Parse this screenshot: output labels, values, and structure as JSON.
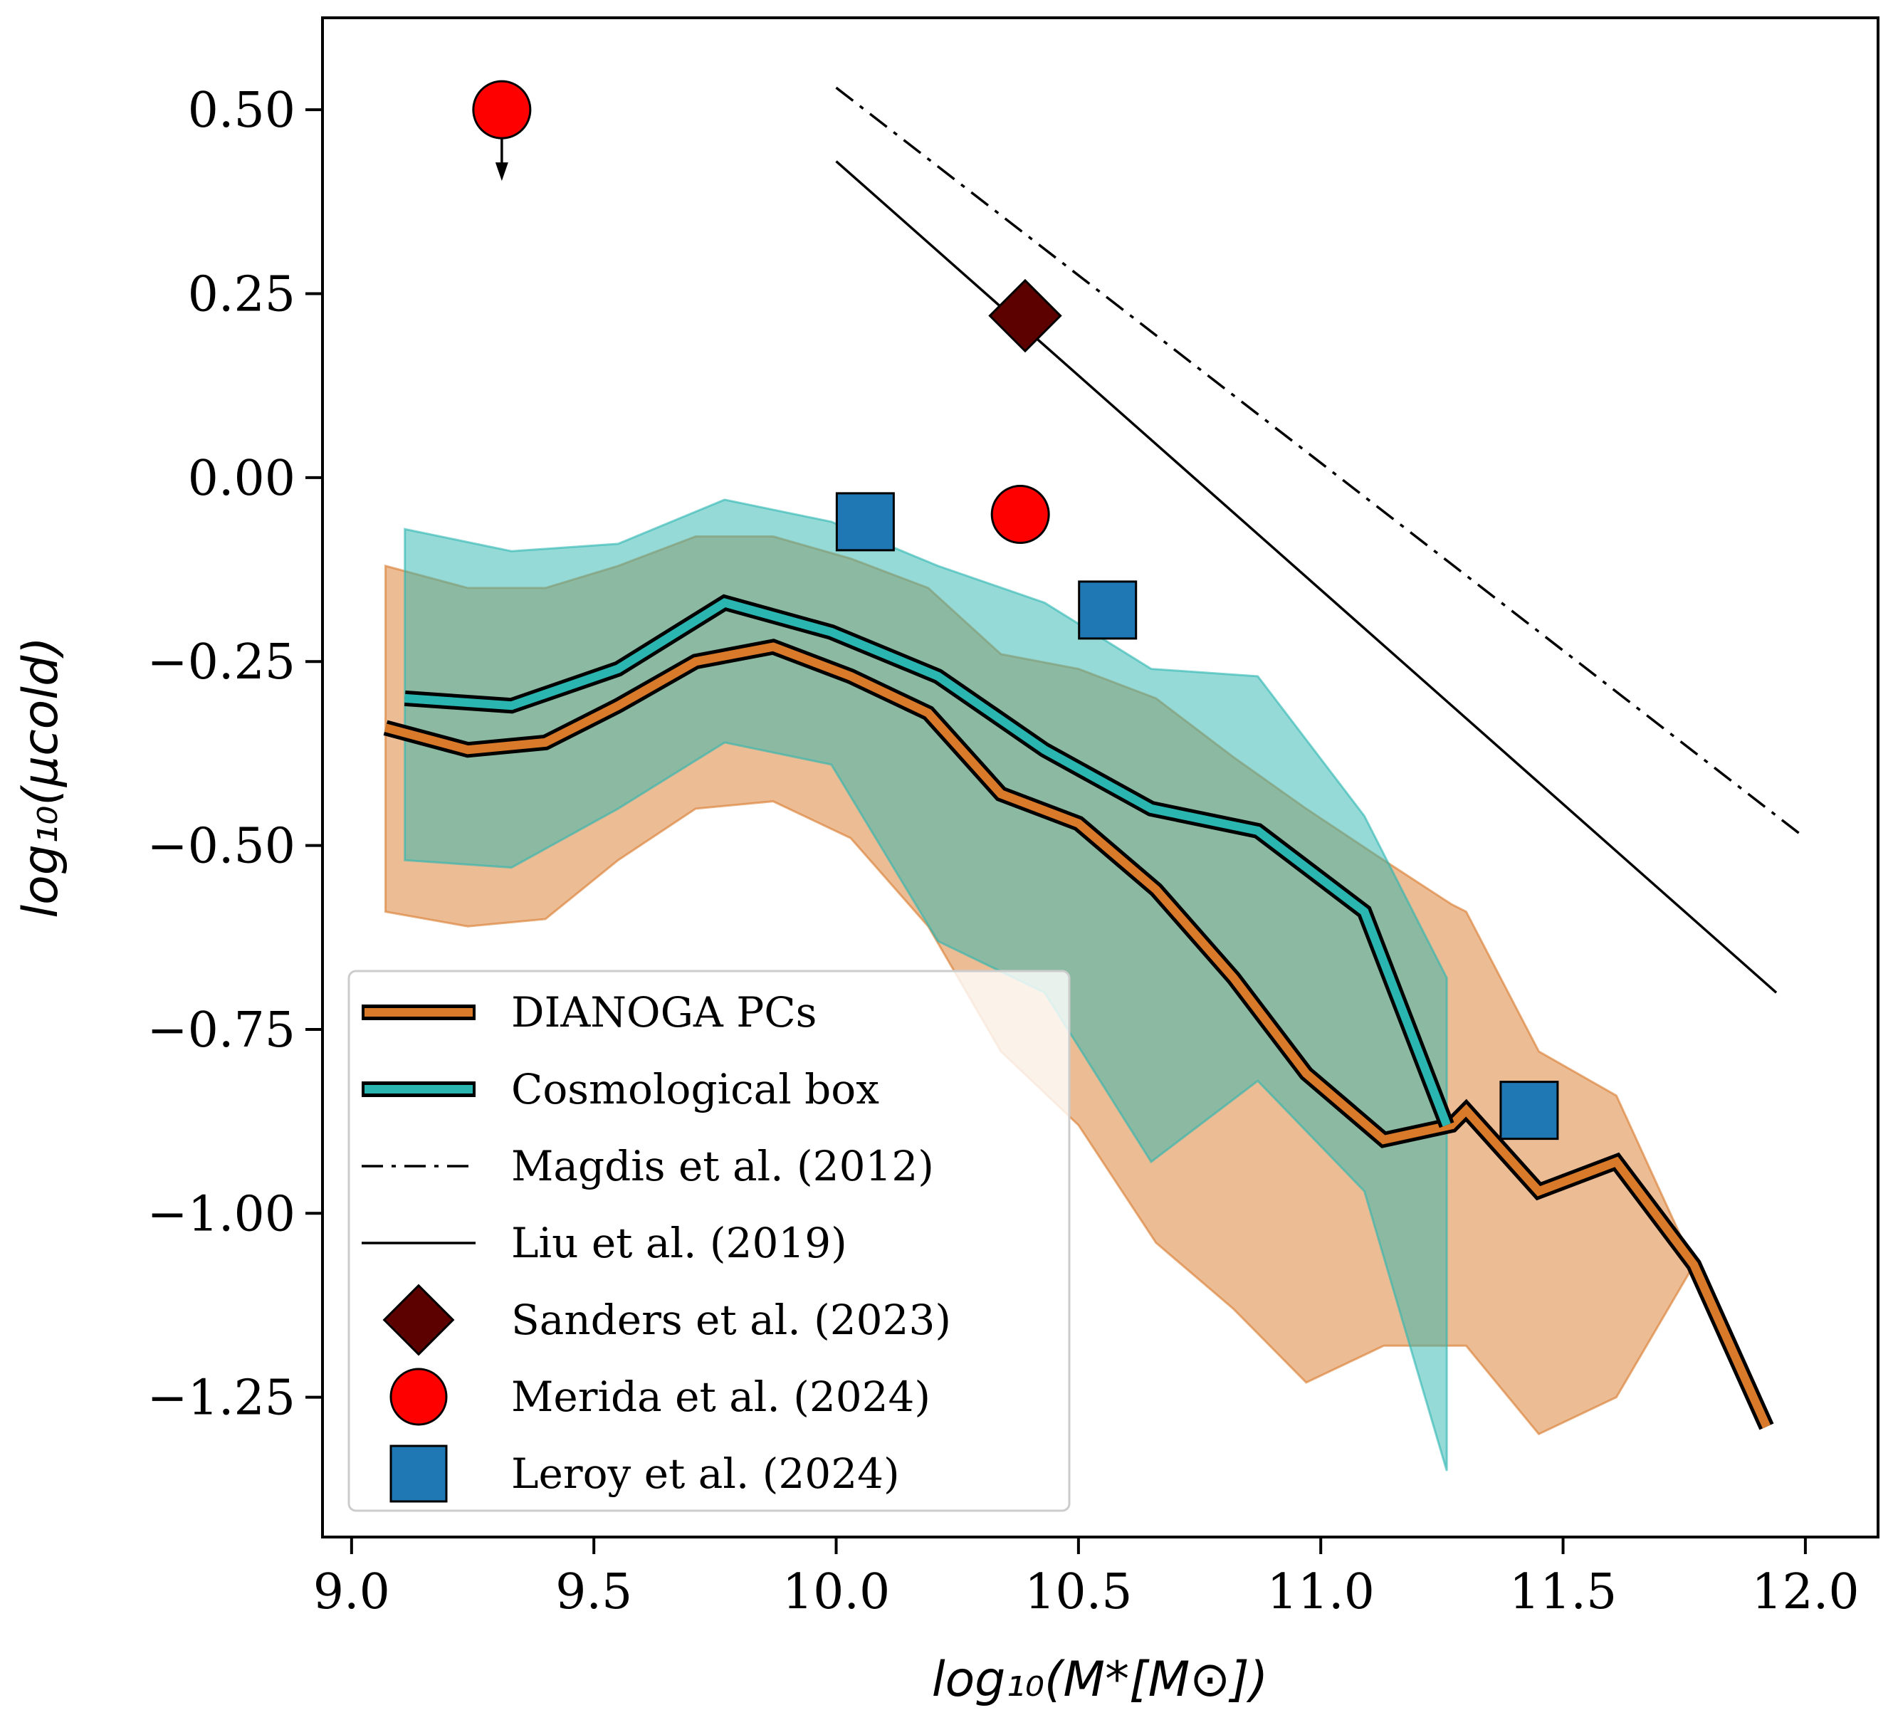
{
  "chart_data": {
    "type": "line",
    "xlabel": "log₁₀(M*[M⊙])",
    "ylabel": "log₁₀(μcold)",
    "xlim": [
      8.94,
      12.15
    ],
    "ylim": [
      -1.44,
      0.625
    ],
    "xticks": [
      9.0,
      9.5,
      10.0,
      10.5,
      11.0,
      11.5,
      12.0
    ],
    "xtick_labels": [
      "9.0",
      "9.5",
      "10.0",
      "10.5",
      "11.0",
      "11.5",
      "12.0"
    ],
    "yticks": [
      0.5,
      0.25,
      0.0,
      -0.25,
      -0.5,
      -0.75,
      -1.0,
      -1.25
    ],
    "ytick_labels": [
      "0.50",
      "0.25",
      "0.00",
      "−0.25",
      "−0.50",
      "−0.75",
      "−1.00",
      "−1.25"
    ],
    "grid": false,
    "legend_position": "lower-left",
    "series": [
      {
        "name": "DIANOGA PCs",
        "kind": "line",
        "color": "#d97a2b",
        "x": [
          9.07,
          9.24,
          9.4,
          9.55,
          9.71,
          9.87,
          10.03,
          10.19,
          10.34,
          10.5,
          10.66,
          10.82,
          10.97,
          11.13,
          11.27,
          11.3,
          11.45,
          11.61,
          11.77,
          11.92
        ],
        "y": [
          -0.34,
          -0.37,
          -0.36,
          -0.31,
          -0.25,
          -0.23,
          -0.27,
          -0.32,
          -0.43,
          -0.47,
          -0.56,
          -0.68,
          -0.81,
          -0.9,
          -0.88,
          -0.86,
          -0.97,
          -0.93,
          -1.07,
          -1.29
        ],
        "band_upper": [
          -0.12,
          -0.15,
          -0.15,
          -0.12,
          -0.08,
          -0.08,
          -0.11,
          -0.15,
          -0.24,
          -0.26,
          -0.3,
          -0.38,
          -0.45,
          -0.52,
          -0.58,
          -0.59,
          -0.78,
          -0.84,
          -1.07,
          -1.29
        ],
        "band_lower": [
          -0.59,
          -0.61,
          -0.6,
          -0.52,
          -0.45,
          -0.44,
          -0.49,
          -0.61,
          -0.78,
          -0.88,
          -1.04,
          -1.13,
          -1.23,
          -1.18,
          -1.18,
          -1.18,
          -1.3,
          -1.25,
          -1.07,
          -1.29
        ]
      },
      {
        "name": "Cosmological box",
        "kind": "line",
        "color": "#2bb5b0",
        "x": [
          9.11,
          9.33,
          9.55,
          9.77,
          9.99,
          10.21,
          10.43,
          10.65,
          10.87,
          11.09,
          11.26
        ],
        "y": [
          -0.3,
          -0.31,
          -0.26,
          -0.17,
          -0.21,
          -0.27,
          -0.37,
          -0.45,
          -0.48,
          -0.59,
          -0.88
        ],
        "band_upper": [
          -0.07,
          -0.1,
          -0.09,
          -0.03,
          -0.06,
          -0.12,
          -0.17,
          -0.26,
          -0.27,
          -0.46,
          -0.68
        ],
        "band_lower": [
          -0.52,
          -0.53,
          -0.45,
          -0.36,
          -0.39,
          -0.63,
          -0.7,
          -0.93,
          -0.82,
          -0.97,
          -1.35
        ]
      },
      {
        "name": "Magdis et al. (2012)",
        "kind": "line",
        "style": "dashdot",
        "color": "#000000",
        "x": [
          10.0,
          12.0
        ],
        "y": [
          0.53,
          -0.49
        ]
      },
      {
        "name": "Liu et al. (2019)",
        "kind": "line",
        "style": "solid",
        "color": "#000000",
        "x": [
          10.0,
          11.94
        ],
        "y": [
          0.43,
          -0.7
        ]
      },
      {
        "name": "Sanders et al. (2023)",
        "kind": "scatter",
        "marker": "diamond",
        "color": "#5c0000",
        "x": [
          10.39
        ],
        "y": [
          0.22
        ]
      },
      {
        "name": "Merida et al. (2024)",
        "kind": "scatter",
        "marker": "circle",
        "color": "#ff0000",
        "x": [
          9.31,
          10.38
        ],
        "y": [
          0.5,
          -0.05
        ],
        "upper_limit": [
          true,
          false
        ]
      },
      {
        "name": "Leroy et al. (2024)",
        "kind": "scatter",
        "marker": "square",
        "color": "#1f77b4",
        "x": [
          10.06,
          10.56,
          11.43
        ],
        "y": [
          -0.06,
          -0.18,
          -0.86
        ]
      }
    ]
  }
}
